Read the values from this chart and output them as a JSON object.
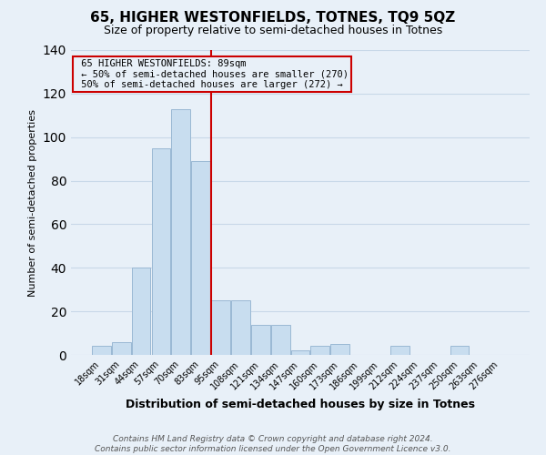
{
  "title": "65, HIGHER WESTONFIELDS, TOTNES, TQ9 5QZ",
  "subtitle": "Size of property relative to semi-detached houses in Totnes",
  "xlabel": "Distribution of semi-detached houses by size in Totnes",
  "ylabel": "Number of semi-detached properties",
  "footer1": "Contains HM Land Registry data © Crown copyright and database right 2024.",
  "footer2": "Contains public sector information licensed under the Open Government Licence v3.0.",
  "bar_color": "#c8ddef",
  "bar_edgecolor": "#9ab8d4",
  "grid_color": "#c8d8e8",
  "background_color": "#e8f0f8",
  "annotation_box_edgecolor": "#cc0000",
  "vline_color": "#cc0000",
  "categories": [
    "18sqm",
    "31sqm",
    "44sqm",
    "57sqm",
    "70sqm",
    "83sqm",
    "95sqm",
    "108sqm",
    "121sqm",
    "134sqm",
    "147sqm",
    "160sqm",
    "173sqm",
    "186sqm",
    "199sqm",
    "212sqm",
    "224sqm",
    "237sqm",
    "250sqm",
    "263sqm",
    "276sqm"
  ],
  "values": [
    4,
    6,
    40,
    95,
    113,
    89,
    25,
    25,
    14,
    14,
    2,
    4,
    5,
    0,
    0,
    4,
    0,
    0,
    4,
    0,
    0
  ],
  "property_label": "65 HIGHER WESTONFIELDS: 89sqm",
  "smaller_count": 270,
  "larger_count": 272,
  "vline_x_index": 6,
  "ylim": [
    0,
    140
  ],
  "yticks": [
    0,
    20,
    40,
    60,
    80,
    100,
    120,
    140
  ],
  "title_fontsize": 11,
  "subtitle_fontsize": 9,
  "xlabel_fontsize": 9,
  "ylabel_fontsize": 8,
  "tick_fontsize": 7,
  "annot_fontsize": 7.5,
  "footer_fontsize": 6.5
}
